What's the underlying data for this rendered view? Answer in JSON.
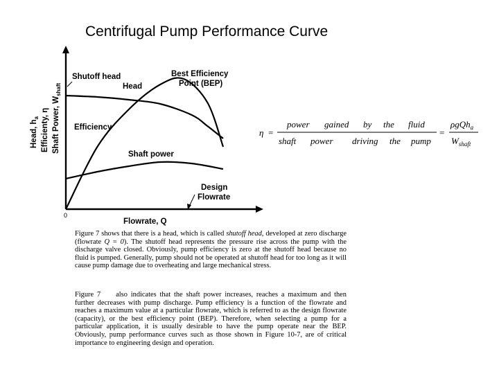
{
  "slide": {
    "title": "Centrifugal Pump Performance Curve"
  },
  "figure": {
    "y_axis_label_line1": "Head, h",
    "y_axis_label_line1_sub": "a",
    "y_axis_label_line2": "Efficienty, η",
    "y_axis_label_line3": "Shaft Power, W",
    "y_axis_label_line3_sub": "shaft",
    "x_axis_label": "Flowrate, Q",
    "origin_label": "0",
    "labels": {
      "shutoff_head": "Shutoff head",
      "head": "Head",
      "bep_line1": "Best Efficiency",
      "bep_line2": "Point (BEP)",
      "efficiency": "Efficiency",
      "shaft_power": "Shaft power",
      "design_line1": "Design",
      "design_line2": "Flowrate"
    }
  },
  "chart_data": {
    "type": "line",
    "title": "",
    "xlabel": "Flowrate, Q",
    "ylabel": "Head, h_a / Efficienty, η / Shaft Power, W_shaft",
    "xlim": [
      0,
      1
    ],
    "ylim": [
      0,
      1
    ],
    "series": [
      {
        "name": "Head",
        "x": [
          0,
          0.2,
          0.4,
          0.6,
          0.8,
          0.9,
          1.0
        ],
        "values": [
          0.82,
          0.81,
          0.79,
          0.76,
          0.68,
          0.6,
          0.51
        ]
      },
      {
        "name": "Efficiency",
        "x": [
          0,
          0.2,
          0.4,
          0.6,
          0.75,
          0.9,
          1.0
        ],
        "values": [
          0.0,
          0.45,
          0.72,
          0.9,
          0.94,
          0.77,
          0.45
        ]
      },
      {
        "name": "Shaft power",
        "x": [
          0,
          0.2,
          0.4,
          0.6,
          0.8,
          1.0
        ],
        "values": [
          0.22,
          0.27,
          0.31,
          0.34,
          0.33,
          0.29
        ]
      }
    ],
    "annotations": [
      "Shutoff head",
      "Best Efficiency Point (BEP)",
      "Design Flowrate"
    ]
  },
  "equation": {
    "eta": "η",
    "equals": "=",
    "numerator": [
      "power",
      "gained",
      "by",
      "the",
      "fluid"
    ],
    "denominator": [
      "shaft",
      "power",
      "driving",
      "the",
      "pump"
    ],
    "rhs_num": "ρgQh",
    "rhs_num_sub": "a",
    "rhs_den": "W",
    "rhs_den_sub": "shaft"
  },
  "body": {
    "p1_a": "Figure 7 shows that there is a head, which is called ",
    "p1_term": "shutoff head",
    "p1_b": ", developed at zero discharge (flowrate ",
    "p1_eq": "Q = 0",
    "p1_c": "). The shutoff head represents the pressure rise across the pump with the discharge valve closed. Obviously, pump efficiency is zero at the shutoff head because no fluid is pumped. Generally, pump should not be operated at shutoff head for too long as it will cause pump damage due to overheating and large mechanical stress.",
    "p2_a": "Figure 7",
    "p2_b": "also indicates that the shaft power increases, reaches a maximum and then further decreases with pump discharge. Pump efficiency is a function of the flowrate and reaches a maximum value at a particular flowrate, which is referred to as the design flowrate (capacity), or the best efficiency point (BEP). Therefore, when selecting a pump for a particular application, it is usually desirable to have the pump operate near the BEP. Obviously, pump performance curves such as those shown in Figure 10-7, are of critical importance to engineering design and operation."
  }
}
